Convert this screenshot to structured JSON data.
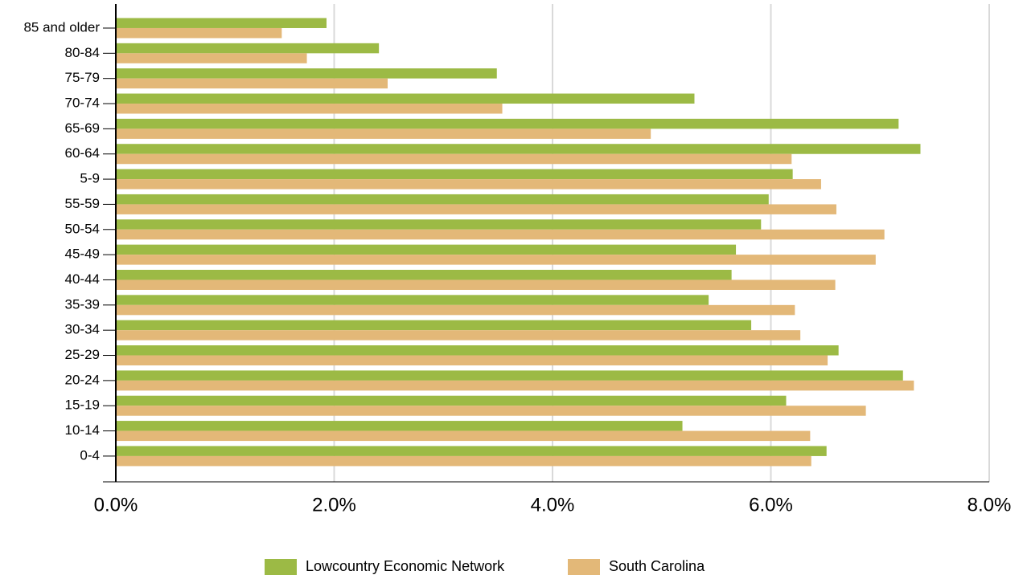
{
  "chart_data": {
    "type": "bar",
    "orientation": "horizontal",
    "categories": [
      "85 and older",
      "80-84",
      "75-79",
      "70-74",
      "65-69",
      "60-64",
      "5-9",
      "55-59",
      "50-54",
      "45-49",
      "40-44",
      "35-39",
      "30-34",
      "25-29",
      "20-24",
      "15-19",
      "10-14",
      "0-4"
    ],
    "series": [
      {
        "name": "Lowcountry Economic Network",
        "color": "#9cba45",
        "values": [
          1.93,
          2.41,
          3.49,
          5.3,
          7.17,
          7.37,
          6.2,
          5.98,
          5.91,
          5.68,
          5.64,
          5.43,
          5.82,
          6.62,
          7.21,
          6.14,
          5.19,
          6.51
        ]
      },
      {
        "name": "South Carolina",
        "color": "#e3b878",
        "values": [
          1.52,
          1.75,
          2.49,
          3.54,
          4.9,
          6.19,
          6.46,
          6.6,
          7.04,
          6.96,
          6.59,
          6.22,
          6.27,
          6.52,
          7.31,
          6.87,
          6.36,
          6.37
        ]
      }
    ],
    "xlim": [
      0,
      8
    ],
    "xticks": [
      {
        "value": 0,
        "label": "0.0%"
      },
      {
        "value": 2,
        "label": "2.0%"
      },
      {
        "value": 4,
        "label": "4.0%"
      },
      {
        "value": 6,
        "label": "6.0%"
      },
      {
        "value": 8,
        "label": "8.0%"
      }
    ],
    "grid": true,
    "legend": "bottom"
  }
}
